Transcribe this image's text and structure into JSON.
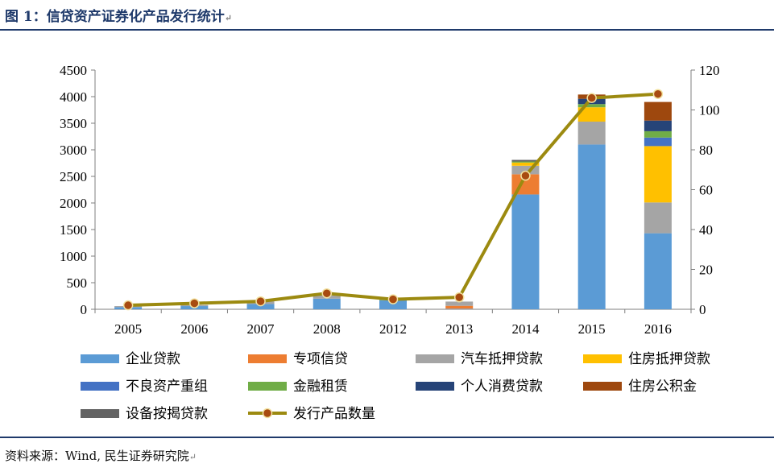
{
  "figure": {
    "title": "图 1：信贷资产证券化产品发行统计",
    "source": "资料来源：Wind, 民生证券研究院"
  },
  "chart_data": {
    "type": "bar",
    "stacked": true,
    "categories": [
      "2005",
      "2006",
      "2007",
      "2008",
      "2012",
      "2013",
      "2014",
      "2015",
      "2016"
    ],
    "y_left": {
      "lim": [
        0,
        4500
      ],
      "ticks": [
        0,
        500,
        1000,
        1500,
        2000,
        2500,
        3000,
        3500,
        4000,
        4500
      ]
    },
    "y_right": {
      "lim": [
        0,
        120
      ],
      "ticks": [
        0,
        20,
        40,
        60,
        80,
        100,
        120
      ]
    },
    "grid": false,
    "legend_position": "bottom",
    "series": [
      {
        "name": "企业贷款",
        "color": "#5b9bd5",
        "values": [
          40,
          60,
          100,
          200,
          170,
          10,
          2160,
          3100,
          1430
        ]
      },
      {
        "name": "专项信贷",
        "color": "#ed7d31",
        "values": [
          0,
          0,
          0,
          0,
          0,
          55,
          380,
          0,
          0
        ]
      },
      {
        "name": "汽车抵押贷款",
        "color": "#a5a5a5",
        "values": [
          20,
          20,
          50,
          60,
          0,
          80,
          160,
          430,
          580
        ]
      },
      {
        "name": "住房抵押贷款",
        "color": "#ffc000",
        "values": [
          0,
          0,
          0,
          0,
          0,
          0,
          60,
          270,
          1060
        ]
      },
      {
        "name": "不良资产重组",
        "color": "#4472c4",
        "values": [
          0,
          0,
          0,
          0,
          0,
          0,
          0,
          0,
          160
        ]
      },
      {
        "name": "金融租赁",
        "color": "#70ad47",
        "values": [
          0,
          0,
          0,
          0,
          20,
          0,
          20,
          60,
          120
        ]
      },
      {
        "name": "个人消费贷款",
        "color": "#264478",
        "values": [
          0,
          0,
          0,
          0,
          0,
          0,
          0,
          100,
          200
        ]
      },
      {
        "name": "住房公积金",
        "color": "#9e480e",
        "values": [
          0,
          0,
          0,
          0,
          0,
          0,
          0,
          80,
          350
        ]
      },
      {
        "name": "设备按揭贷款",
        "color": "#636363",
        "values": [
          0,
          0,
          0,
          0,
          0,
          0,
          30,
          0,
          0
        ]
      }
    ],
    "line_series": {
      "name": "发行产品数量",
      "axis": "right",
      "color": "#9c8a10",
      "marker_color": "#a84b10",
      "values": [
        2,
        3,
        4,
        8,
        5,
        6,
        67,
        106,
        108
      ]
    }
  }
}
